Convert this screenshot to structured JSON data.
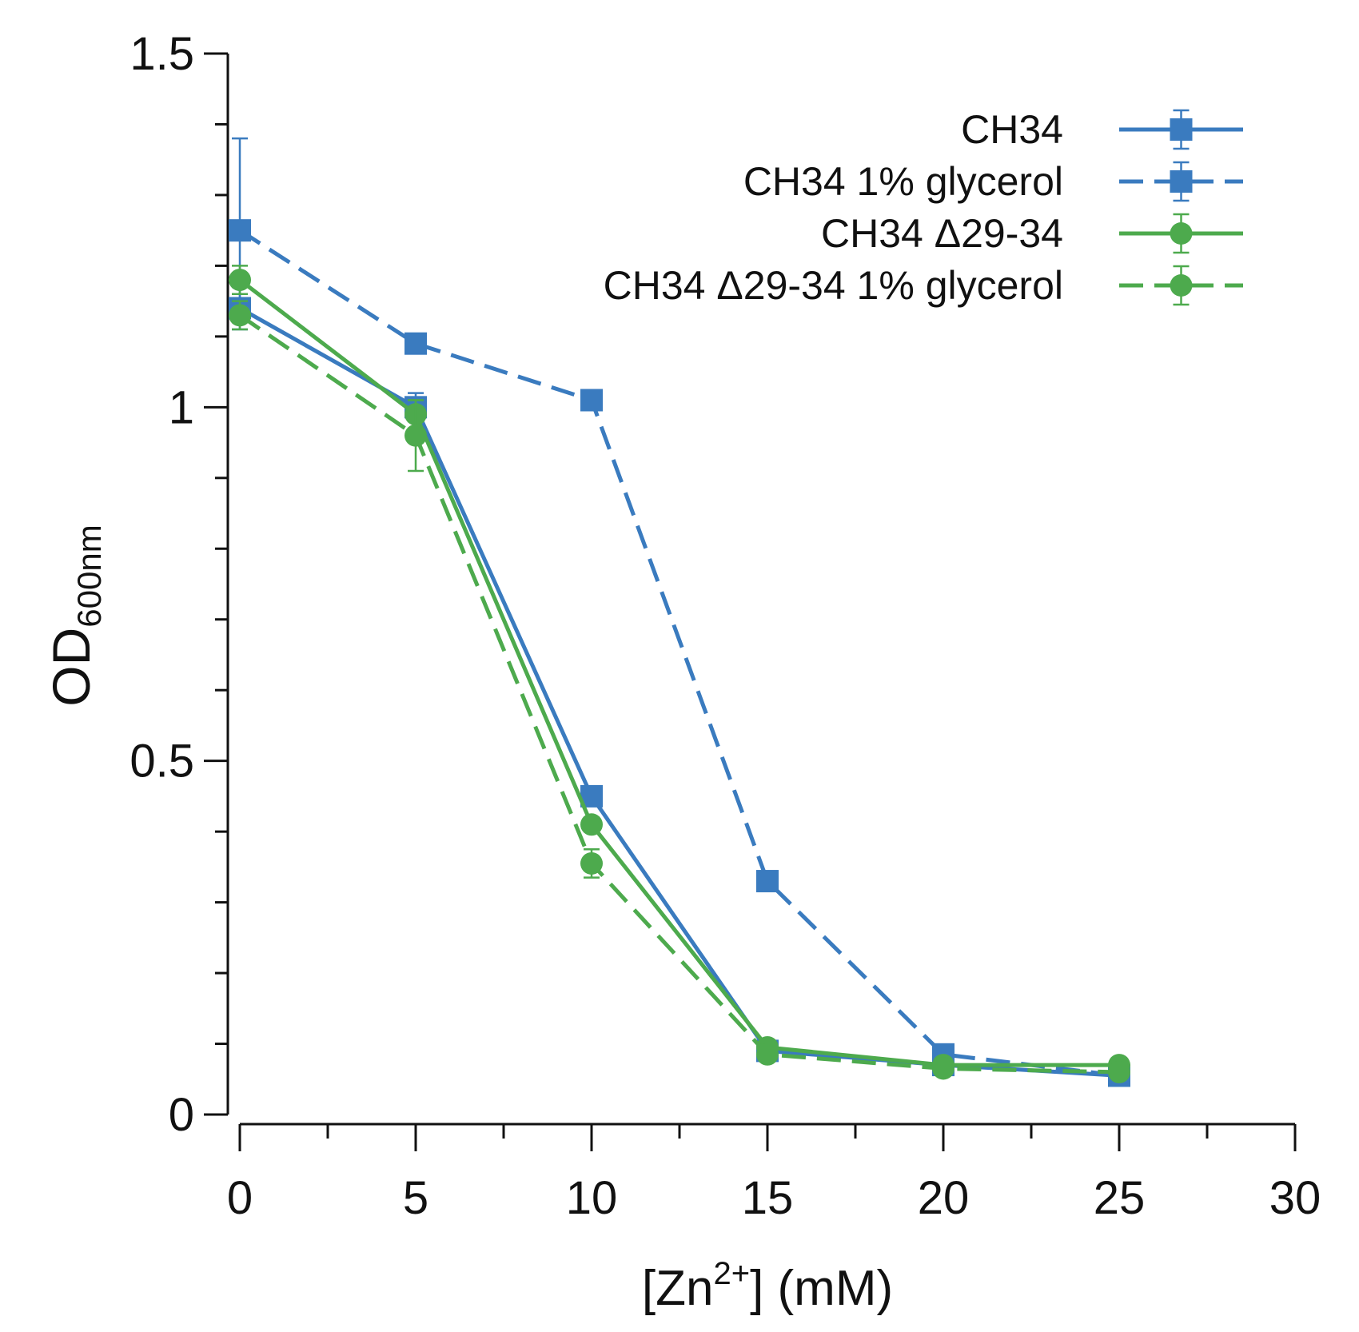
{
  "chart_data": {
    "type": "line",
    "title": "",
    "xlabel": {
      "prefix": "[Zn",
      "superscript": "2+",
      "suffix": "] (mM)"
    },
    "ylabel": {
      "main": "OD",
      "subscript": "600nm"
    },
    "xlim": [
      0,
      30
    ],
    "ylim": [
      0,
      1.5
    ],
    "xticks": [
      0,
      5,
      10,
      15,
      20,
      25,
      30
    ],
    "xtick_labels": [
      "0",
      "5",
      "10",
      "15",
      "20",
      "25",
      "30"
    ],
    "yticks": [
      0,
      0.5,
      1,
      1.5
    ],
    "ytick_labels": [
      "0",
      "0.5",
      "1",
      "1.5"
    ],
    "x": [
      0,
      5,
      10,
      15,
      20,
      25
    ],
    "legend_position": "top-right",
    "series": [
      {
        "name": "CH34",
        "color": "#3a7bbf",
        "marker": "square",
        "dash": "solid",
        "values": [
          1.14,
          1.0,
          0.45,
          0.09,
          0.07,
          0.055
        ],
        "errors": [
          0.03,
          0.02,
          0.01,
          0.01,
          0.01,
          0.005
        ]
      },
      {
        "name": "CH34 1% glycerol",
        "color": "#3a7bbf",
        "marker": "square",
        "dash": "dashed",
        "values": [
          1.25,
          1.09,
          1.01,
          0.33,
          0.085,
          0.055
        ],
        "errors": [
          0.13,
          0.01,
          0.01,
          0.01,
          0.01,
          0.005
        ]
      },
      {
        "name": "CH34 Δ29-34",
        "color": "#4daa4d",
        "marker": "circle",
        "dash": "solid",
        "values": [
          1.18,
          0.99,
          0.41,
          0.095,
          0.07,
          0.07
        ],
        "errors": [
          0.02,
          0.02,
          0.01,
          0.01,
          0.005,
          0.005
        ]
      },
      {
        "name": "CH34 Δ29-34 1% glycerol",
        "color": "#4daa4d",
        "marker": "circle",
        "dash": "dashed",
        "values": [
          1.13,
          0.96,
          0.355,
          0.085,
          0.065,
          0.06
        ],
        "errors": [
          0.02,
          0.05,
          0.02,
          0.01,
          0.005,
          0.005
        ]
      }
    ]
  }
}
